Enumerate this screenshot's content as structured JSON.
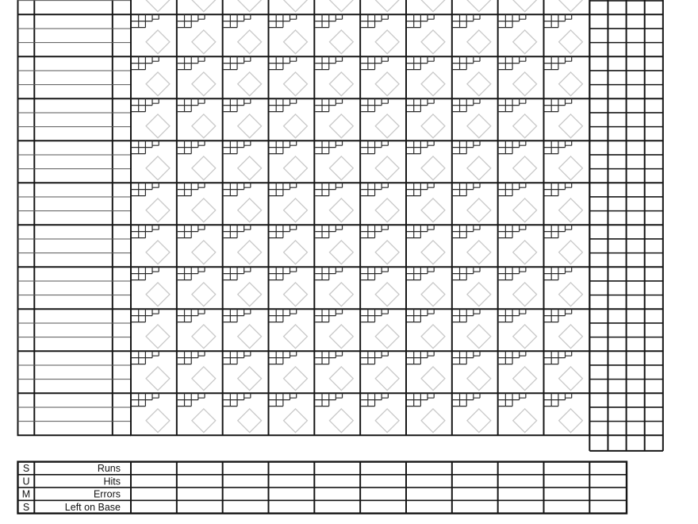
{
  "scorecard": {
    "innings_columns": 10,
    "batter_blocks": 10,
    "sub_rows_per_batter": 3,
    "stat_columns": 4,
    "top_row_clipped": true
  },
  "colors": {
    "background": "#ffffff",
    "grid_line": "#161616",
    "thin_line": "#555555",
    "pitch_box_line": "#2b2b2b",
    "diamond": "#c8c8c8",
    "text": "#111111"
  },
  "sums": {
    "vertical_label": [
      "S",
      "U",
      "M",
      "S"
    ],
    "row_labels": [
      "Runs",
      "Hits",
      "Errors",
      "Left on Base"
    ]
  }
}
